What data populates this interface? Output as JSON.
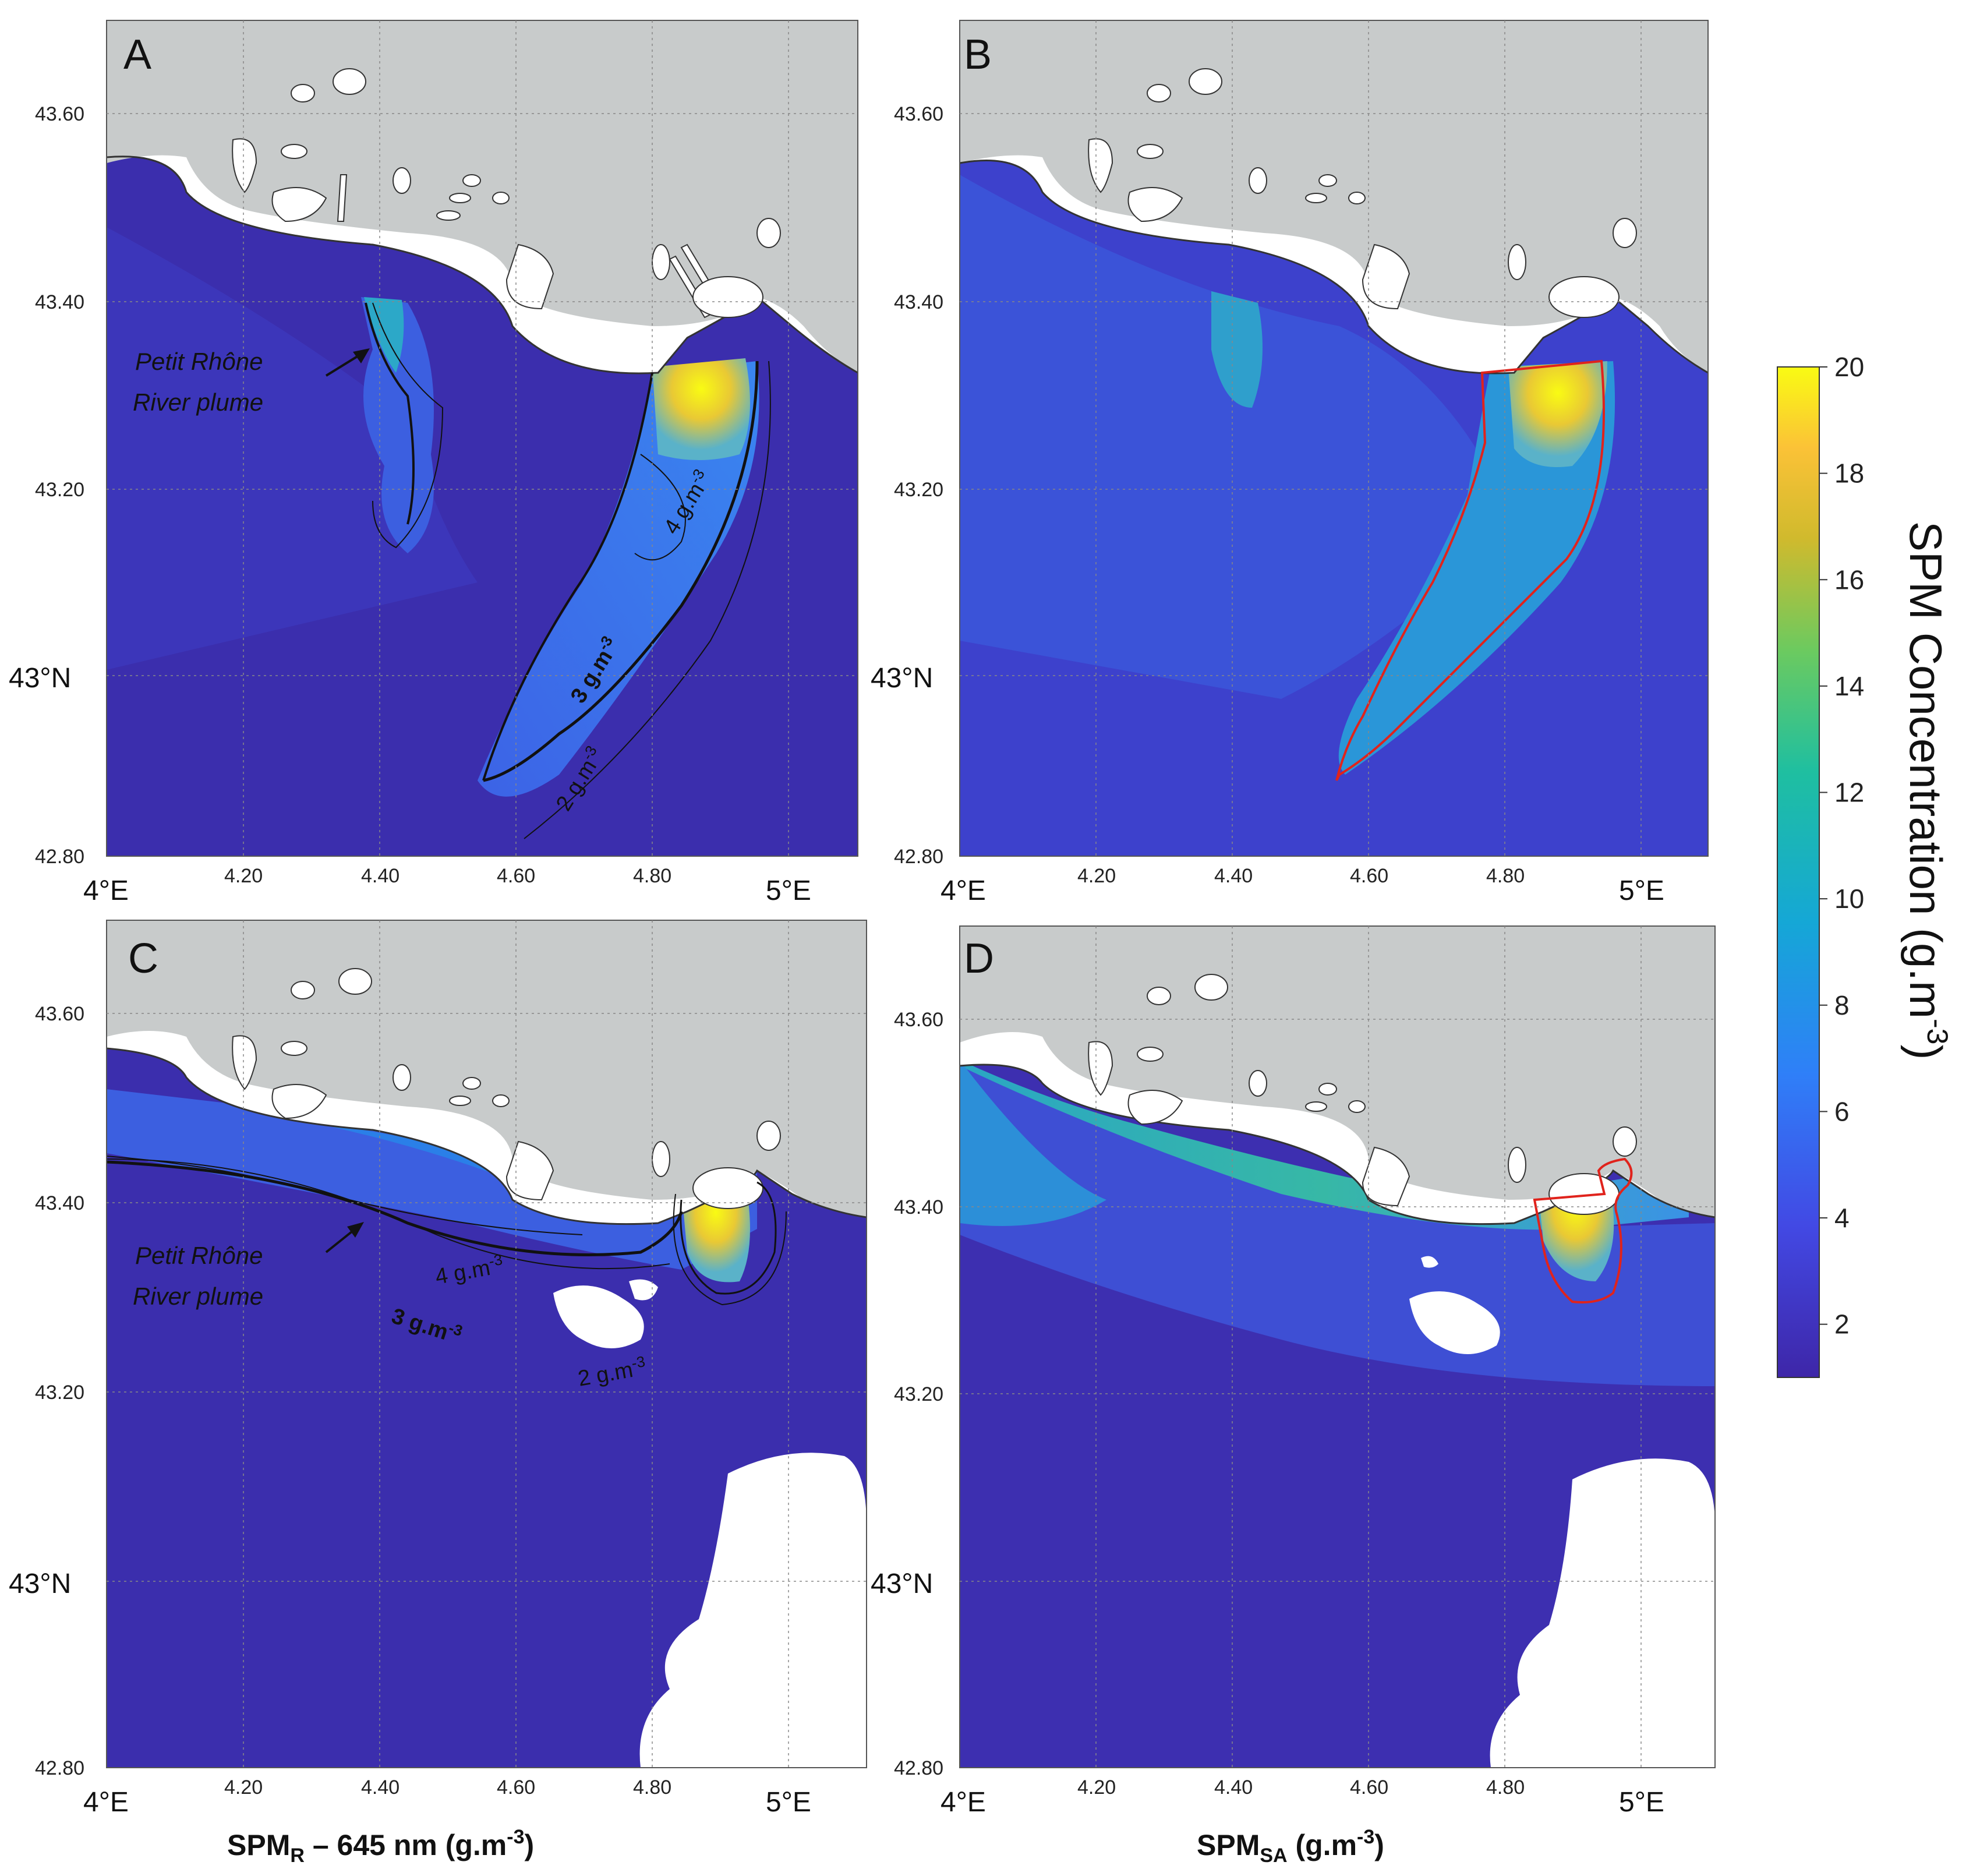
{
  "panels": [
    {
      "letter": "A",
      "xlabel": "",
      "annotation": [
        "Petit Rhône",
        "River plume"
      ],
      "contours": [
        "4 g.m",
        "3 g.m",
        "2 g.m"
      ]
    },
    {
      "letter": "B",
      "xlabel": "",
      "annotation": [],
      "contours": []
    },
    {
      "letter": "C",
      "xlabel_main": "SPM",
      "xlabel_sub": "R",
      "xlabel_rest": " – 645 nm (g.m",
      "xlabel_sup": "-3",
      "xlabel_end": ")",
      "annotation": [
        "Petit Rhône",
        "River plume"
      ],
      "contours": [
        "4 g.m",
        "3 g.m",
        "2 g.m"
      ]
    },
    {
      "letter": "D",
      "xlabel_main": "SPM",
      "xlabel_sub": "SA",
      "xlabel_rest": " (g.m",
      "xlabel_sup": "-3",
      "xlabel_end": ")",
      "annotation": [],
      "contours": []
    }
  ],
  "axes": {
    "lat_ticks": [
      "43.60",
      "43.40",
      "43.20",
      "43.00",
      "42.80"
    ],
    "lat_ticks_labels": [
      "43.60",
      "43.40",
      "43.20",
      "43°N",
      "42.80"
    ],
    "lon_ticks_labels": [
      "4°E",
      "4.20",
      "4.40",
      "4.60",
      "4.80",
      "5°E"
    ],
    "lon_range": [
      4.0,
      5.1
    ],
    "lat_range": [
      42.8,
      43.7
    ]
  },
  "colorbar": {
    "title": "SPM Concentration (g.m",
    "title_sup": "-3",
    "title_end": ")",
    "ticks": [
      "20",
      "18",
      "16",
      "14",
      "12",
      "10",
      "8",
      "6",
      "4",
      "2"
    ],
    "range": [
      1,
      20
    ],
    "colormap": "parula"
  },
  "colors": {
    "land": "#c8cbcb",
    "nodata": "#ffffff",
    "low": "#3f2ea8",
    "high": "#f9fb13",
    "outline_red": "#e0231c"
  }
}
